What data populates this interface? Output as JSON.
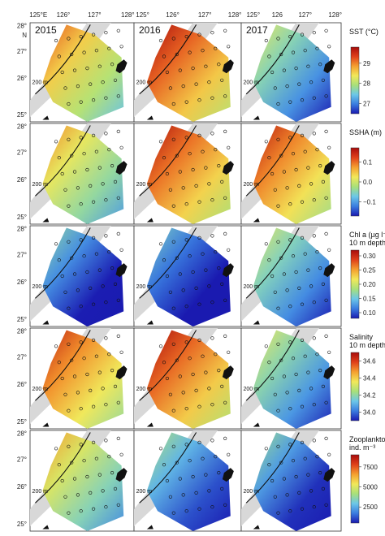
{
  "chart_data": {
    "type": "heatmap",
    "years": [
      "2015",
      "2016",
      "2017"
    ],
    "top_axis_labels": [
      "125°E",
      "126°",
      "127°",
      "128°",
      "125°",
      "126°",
      "127°",
      "128°",
      "125°",
      "126",
      "127°",
      "128°"
    ],
    "lat_labels": [
      "28°",
      "N",
      "27°",
      "26°",
      "25°"
    ],
    "isobath_label": "200 m",
    "variables": [
      {
        "name": "SST",
        "label_lines": [
          "SST (°C)"
        ],
        "ticks": [
          "29",
          "28",
          "27"
        ],
        "tick_values": [
          29,
          28,
          27
        ],
        "range": [
          26.5,
          29.8
        ],
        "panels": [
          {
            "year": "2015",
            "mean": 28.4
          },
          {
            "year": "2016",
            "mean": 29.0
          },
          {
            "year": "2017",
            "mean": 27.5
          }
        ]
      },
      {
        "name": "SSHA",
        "label_lines": [
          "SSHA (m)"
        ],
        "ticks": [
          "0.1",
          "0.0",
          "−0.1"
        ],
        "tick_values": [
          0.1,
          0.0,
          -0.1
        ],
        "range": [
          -0.17,
          0.17
        ],
        "panels": [
          {
            "year": "2015",
            "mean": 0.0
          },
          {
            "year": "2016",
            "mean": 0.08
          },
          {
            "year": "2017",
            "mean": 0.07
          }
        ]
      },
      {
        "name": "Chl a",
        "label_lines": [
          "Chl a (µg l⁻¹)",
          "10 m depth"
        ],
        "ticks": [
          "0.30",
          "0.25",
          "0.20",
          "0.15",
          "0.10"
        ],
        "tick_values": [
          0.3,
          0.25,
          0.2,
          0.15,
          0.1
        ],
        "range": [
          0.08,
          0.32
        ],
        "panels": [
          {
            "year": "2015",
            "mean": 0.11
          },
          {
            "year": "2016",
            "mean": 0.1
          },
          {
            "year": "2017",
            "mean": 0.15
          }
        ]
      },
      {
        "name": "Salinity",
        "label_lines": [
          "Salinity",
          "10 m depth"
        ],
        "ticks": [
          "34.6",
          "34.4",
          "34.2",
          "34.0"
        ],
        "tick_values": [
          34.6,
          34.4,
          34.2,
          34.0
        ],
        "range": [
          33.9,
          34.7
        ],
        "panels": [
          {
            "year": "2015",
            "mean": 34.45
          },
          {
            "year": "2016",
            "mean": 34.5
          },
          {
            "year": "2017",
            "mean": 34.15
          }
        ]
      },
      {
        "name": "Zooplankton",
        "label_lines": [
          "Zooplankton",
          "ind. m⁻³"
        ],
        "ticks": [
          "7500",
          "5000",
          "2500"
        ],
        "tick_values": [
          7500,
          5000,
          2500
        ],
        "range": [
          500,
          9000
        ],
        "panels": [
          {
            "year": "2015",
            "mean": 4500
          },
          {
            "year": "2016",
            "mean": 2200
          },
          {
            "year": "2017",
            "mean": 1800
          }
        ]
      }
    ],
    "colormap": [
      "#1a1ab0",
      "#3a7de0",
      "#6cc7e8",
      "#a8e07a",
      "#f2e85a",
      "#f5a030",
      "#e0401a",
      "#a80c0c"
    ]
  }
}
